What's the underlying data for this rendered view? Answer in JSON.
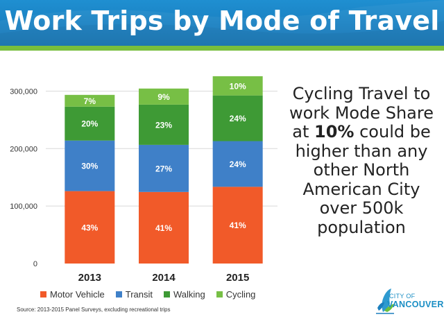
{
  "header": {
    "title": "Work Trips by Mode of Travel",
    "bg_color": "#1a82c4",
    "accent_color": "#78be3c"
  },
  "side_text": {
    "part1": "Cycling Travel to work Mode Share at ",
    "highlight": "10%",
    "part2": " could be higher than any other North American City over 500k population"
  },
  "source": "Source: 2013-2015 Panel Surveys, excluding recreational trips",
  "logo": {
    "line1": "CITY OF",
    "line2": "VANCOUVER",
    "icon": "leaf-logo-icon"
  },
  "chart_data": {
    "type": "bar",
    "stacked": true,
    "categories": [
      "2013",
      "2014",
      "2015"
    ],
    "series": [
      {
        "name": "Motor Vehicle",
        "color": "#f15a29",
        "values": [
          126000,
          124500,
          133500
        ],
        "labels": [
          "43%",
          "41%",
          "41%"
        ]
      },
      {
        "name": "Transit",
        "color": "#3f80c8",
        "values": [
          88000,
          82000,
          79500
        ],
        "labels": [
          "30%",
          "27%",
          "24%"
        ]
      },
      {
        "name": "Walking",
        "color": "#3e9a35",
        "values": [
          59000,
          70000,
          79500
        ],
        "labels": [
          "20%",
          "23%",
          "24%"
        ]
      },
      {
        "name": "Cycling",
        "color": "#77bf45",
        "values": [
          20500,
          28000,
          33500
        ],
        "labels": [
          "7%",
          "9%",
          "10%"
        ]
      }
    ],
    "totals": [
      293500,
      304500,
      326000
    ],
    "ylim": [
      0,
      350000
    ],
    "yticks": [
      0,
      100000,
      200000,
      300000
    ],
    "ytick_labels": [
      "0",
      "100,000",
      "200,000",
      "300,000"
    ],
    "grid": true,
    "legend_position": "bottom"
  }
}
